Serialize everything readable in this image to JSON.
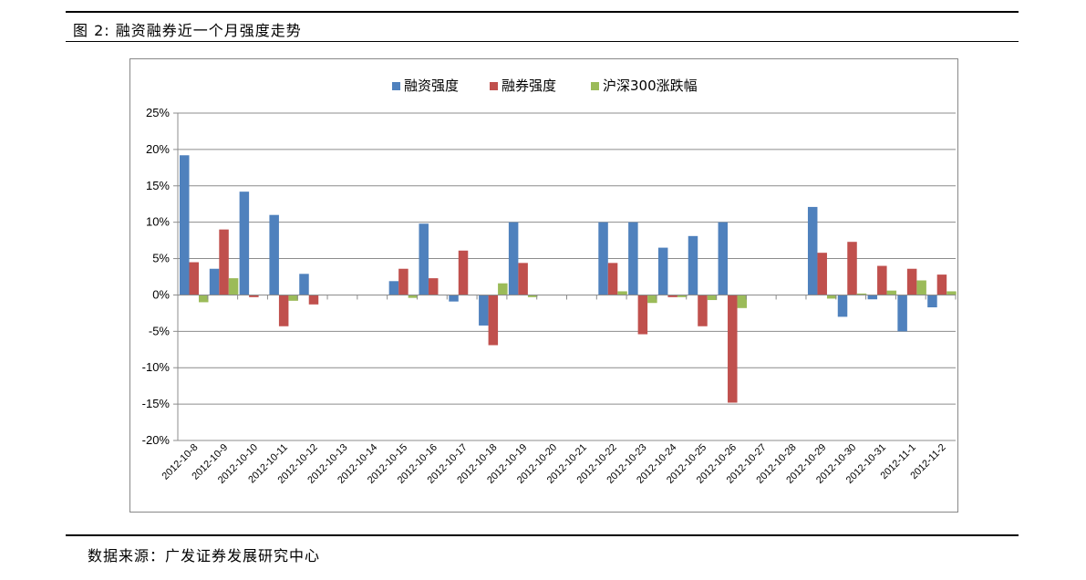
{
  "figure": {
    "title": "图 2:  融资融券近一个月强度走势",
    "source": "数据来源：广发证券发展研究中心"
  },
  "chart_data": {
    "type": "bar",
    "title": "",
    "xlabel": "",
    "ylabel": "",
    "ylim": [
      -20,
      25
    ],
    "yticks": [
      25,
      20,
      15,
      10,
      5,
      0,
      -5,
      -10,
      -15,
      -20
    ],
    "ytick_labels": [
      "25%",
      "20%",
      "15%",
      "10%",
      "5%",
      "0%",
      "-5%",
      "-10%",
      "-15%",
      "-20%"
    ],
    "grid": true,
    "legend": "top-center",
    "categories": [
      "2012-10-8",
      "2012-10-9",
      "2012-10-10",
      "2012-10-11",
      "2012-10-12",
      "2012-10-13",
      "2012-10-14",
      "2012-10-15",
      "2012-10-16",
      "2012-10-17",
      "2012-10-18",
      "2012-10-19",
      "2012-10-20",
      "2012-10-21",
      "2012-10-22",
      "2012-10-23",
      "2012-10-24",
      "2012-10-25",
      "2012-10-26",
      "2012-10-27",
      "2012-10-28",
      "2012-10-29",
      "2012-10-30",
      "2012-10-31",
      "2012-11-1",
      "2012-11-2"
    ],
    "series": [
      {
        "name": "融资强度",
        "color": "#4F81BD",
        "values": [
          19.2,
          3.6,
          14.2,
          11.0,
          2.9,
          null,
          null,
          1.9,
          9.8,
          -0.9,
          -4.2,
          10.0,
          null,
          null,
          10.0,
          10.0,
          6.5,
          8.1,
          10.0,
          null,
          null,
          12.1,
          -3.0,
          -0.6,
          -5.0,
          -1.7
        ]
      },
      {
        "name": "融券强度",
        "color": "#C0504D",
        "values": [
          4.5,
          9.0,
          -0.3,
          -4.3,
          -1.3,
          null,
          null,
          3.6,
          2.3,
          6.1,
          -6.9,
          4.4,
          null,
          null,
          4.4,
          -5.4,
          -0.3,
          -4.3,
          -14.8,
          null,
          null,
          5.8,
          7.3,
          4.0,
          3.6,
          2.8
        ]
      },
      {
        "name": "沪深300涨跌幅",
        "color": "#9BBB59",
        "values": [
          -1.0,
          2.3,
          0.0,
          -0.8,
          0.0,
          null,
          null,
          -0.4,
          0.0,
          0.0,
          1.6,
          -0.3,
          null,
          null,
          0.5,
          -1.1,
          -0.3,
          -0.7,
          -1.8,
          null,
          null,
          -0.5,
          0.2,
          0.6,
          2.0,
          0.5
        ]
      }
    ]
  }
}
